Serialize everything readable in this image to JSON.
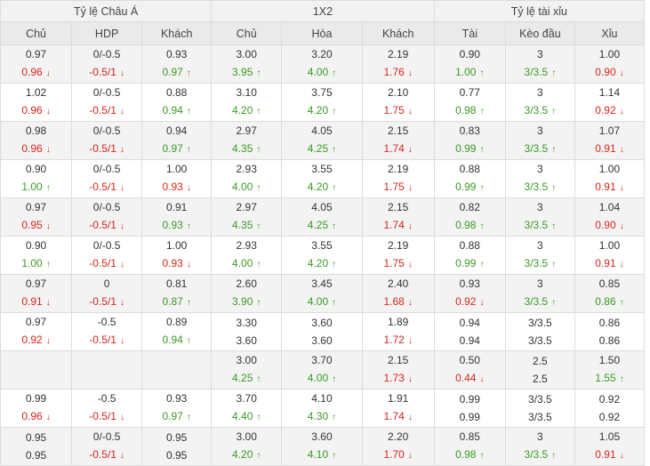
{
  "headers": {
    "groups": [
      "Tỷ lệ Châu Á",
      "1X2",
      "Tỷ lệ tài xỉu"
    ],
    "columns": [
      "Chủ",
      "HDP",
      "Khách",
      "Chủ",
      "Hòa",
      "Khách",
      "Tài",
      "Kèo đầu",
      "Xỉu"
    ]
  },
  "arrows": {
    "up": "↑",
    "down": "↓"
  },
  "colors": {
    "up": "#3a9a23",
    "down": "#d9251c",
    "text": "#333333"
  },
  "rows": [
    [
      [
        [
          "0.97",
          ""
        ],
        [
          "0.96",
          "down"
        ]
      ],
      [
        [
          "0/-0.5",
          ""
        ],
        [
          "-0.5/1",
          "down"
        ]
      ],
      [
        [
          "0.93",
          ""
        ],
        [
          "0.97",
          "up"
        ]
      ],
      [
        [
          "3.00",
          ""
        ],
        [
          "3.95",
          "up"
        ]
      ],
      [
        [
          "3.20",
          ""
        ],
        [
          "4.00",
          "up"
        ]
      ],
      [
        [
          "2.19",
          ""
        ],
        [
          "1.76",
          "down"
        ]
      ],
      [
        [
          "0.90",
          ""
        ],
        [
          "1.00",
          "up"
        ]
      ],
      [
        [
          "3",
          ""
        ],
        [
          "3/3.5",
          "up"
        ]
      ],
      [
        [
          "1.00",
          ""
        ],
        [
          "0.90",
          "down"
        ]
      ]
    ],
    [
      [
        [
          "1.02",
          ""
        ],
        [
          "0.96",
          "down"
        ]
      ],
      [
        [
          "0/-0.5",
          ""
        ],
        [
          "-0.5/1",
          "down"
        ]
      ],
      [
        [
          "0.88",
          ""
        ],
        [
          "0.94",
          "up"
        ]
      ],
      [
        [
          "3.10",
          ""
        ],
        [
          "4.20",
          "up"
        ]
      ],
      [
        [
          "3.75",
          ""
        ],
        [
          "4.20",
          "up"
        ]
      ],
      [
        [
          "2.10",
          ""
        ],
        [
          "1.75",
          "down"
        ]
      ],
      [
        [
          "0.77",
          ""
        ],
        [
          "0.98",
          "up"
        ]
      ],
      [
        [
          "3",
          ""
        ],
        [
          "3/3.5",
          "up"
        ]
      ],
      [
        [
          "1.14",
          ""
        ],
        [
          "0.92",
          "down"
        ]
      ]
    ],
    [
      [
        [
          "0.98",
          ""
        ],
        [
          "0.96",
          "down"
        ]
      ],
      [
        [
          "0/-0.5",
          ""
        ],
        [
          "-0.5/1",
          "down"
        ]
      ],
      [
        [
          "0.94",
          ""
        ],
        [
          "0.97",
          "up"
        ]
      ],
      [
        [
          "2.97",
          ""
        ],
        [
          "4.35",
          "up"
        ]
      ],
      [
        [
          "4.05",
          ""
        ],
        [
          "4.25",
          "up"
        ]
      ],
      [
        [
          "2.15",
          ""
        ],
        [
          "1.74",
          "down"
        ]
      ],
      [
        [
          "0.83",
          ""
        ],
        [
          "0.99",
          "up"
        ]
      ],
      [
        [
          "3",
          ""
        ],
        [
          "3/3.5",
          "up"
        ]
      ],
      [
        [
          "1.07",
          ""
        ],
        [
          "0.91",
          "down"
        ]
      ]
    ],
    [
      [
        [
          "0.90",
          ""
        ],
        [
          "1.00",
          "up"
        ]
      ],
      [
        [
          "0/-0.5",
          ""
        ],
        [
          "-0.5/1",
          "down"
        ]
      ],
      [
        [
          "1.00",
          ""
        ],
        [
          "0.93",
          "down"
        ]
      ],
      [
        [
          "2.93",
          ""
        ],
        [
          "4.00",
          "up"
        ]
      ],
      [
        [
          "3.55",
          ""
        ],
        [
          "4.20",
          "up"
        ]
      ],
      [
        [
          "2.19",
          ""
        ],
        [
          "1.75",
          "down"
        ]
      ],
      [
        [
          "0.88",
          ""
        ],
        [
          "0.99",
          "up"
        ]
      ],
      [
        [
          "3",
          ""
        ],
        [
          "3/3.5",
          "up"
        ]
      ],
      [
        [
          "1.00",
          ""
        ],
        [
          "0.91",
          "down"
        ]
      ]
    ],
    [
      [
        [
          "0.97",
          ""
        ],
        [
          "0.95",
          "down"
        ]
      ],
      [
        [
          "0/-0.5",
          ""
        ],
        [
          "-0.5/1",
          "down"
        ]
      ],
      [
        [
          "0.91",
          ""
        ],
        [
          "0.93",
          "up"
        ]
      ],
      [
        [
          "2.97",
          ""
        ],
        [
          "4.35",
          "up"
        ]
      ],
      [
        [
          "4.05",
          ""
        ],
        [
          "4.25",
          "up"
        ]
      ],
      [
        [
          "2.15",
          ""
        ],
        [
          "1.74",
          "down"
        ]
      ],
      [
        [
          "0.82",
          ""
        ],
        [
          "0.98",
          "up"
        ]
      ],
      [
        [
          "3",
          ""
        ],
        [
          "3/3.5",
          "up"
        ]
      ],
      [
        [
          "1.04",
          ""
        ],
        [
          "0.90",
          "down"
        ]
      ]
    ],
    [
      [
        [
          "0.90",
          ""
        ],
        [
          "1.00",
          "up"
        ]
      ],
      [
        [
          "0/-0.5",
          ""
        ],
        [
          "-0.5/1",
          "down"
        ]
      ],
      [
        [
          "1.00",
          ""
        ],
        [
          "0.93",
          "down"
        ]
      ],
      [
        [
          "2.93",
          ""
        ],
        [
          "4.00",
          "up"
        ]
      ],
      [
        [
          "3.55",
          ""
        ],
        [
          "4.20",
          "up"
        ]
      ],
      [
        [
          "2.19",
          ""
        ],
        [
          "1.75",
          "down"
        ]
      ],
      [
        [
          "0.88",
          ""
        ],
        [
          "0.99",
          "up"
        ]
      ],
      [
        [
          "3",
          ""
        ],
        [
          "3/3.5",
          "up"
        ]
      ],
      [
        [
          "1.00",
          ""
        ],
        [
          "0.91",
          "down"
        ]
      ]
    ],
    [
      [
        [
          "0.97",
          ""
        ],
        [
          "0.91",
          "down"
        ]
      ],
      [
        [
          "0",
          ""
        ],
        [
          "-0.5/1",
          "down"
        ]
      ],
      [
        [
          "0.81",
          ""
        ],
        [
          "0.87",
          "up"
        ]
      ],
      [
        [
          "2.60",
          ""
        ],
        [
          "3.90",
          "up"
        ]
      ],
      [
        [
          "3.45",
          ""
        ],
        [
          "4.00",
          "up"
        ]
      ],
      [
        [
          "2.40",
          ""
        ],
        [
          "1.68",
          "down"
        ]
      ],
      [
        [
          "0.93",
          ""
        ],
        [
          "0.92",
          "down"
        ]
      ],
      [
        [
          "3",
          ""
        ],
        [
          "3/3.5",
          "up"
        ]
      ],
      [
        [
          "0.85",
          ""
        ],
        [
          "0.86",
          "up"
        ]
      ]
    ],
    [
      [
        [
          "0.97",
          ""
        ],
        [
          "0.92",
          "down"
        ]
      ],
      [
        [
          "-0.5",
          ""
        ],
        [
          "-0.5/1",
          "down"
        ]
      ],
      [
        [
          "0.89",
          ""
        ],
        [
          "0.94",
          "up"
        ]
      ],
      [
        [
          "3.30",
          ""
        ],
        [
          "3.60",
          ""
        ]
      ],
      [
        [
          "3.60",
          ""
        ],
        [
          "3.60",
          ""
        ]
      ],
      [
        [
          "1.89",
          ""
        ],
        [
          "1.72",
          "down"
        ]
      ],
      [
        [
          "0.94",
          ""
        ],
        [
          "0.94",
          ""
        ]
      ],
      [
        [
          "3/3.5",
          ""
        ],
        [
          "3/3.5",
          ""
        ]
      ],
      [
        [
          "0.86",
          ""
        ],
        [
          "0.86",
          ""
        ]
      ]
    ],
    [
      [],
      [],
      [],
      [
        [
          "3.00",
          ""
        ],
        [
          "4.25",
          "up"
        ]
      ],
      [
        [
          "3.70",
          ""
        ],
        [
          "4.00",
          "up"
        ]
      ],
      [
        [
          "2.15",
          ""
        ],
        [
          "1.73",
          "down"
        ]
      ],
      [
        [
          "0.50",
          ""
        ],
        [
          "0.44",
          "down"
        ]
      ],
      [
        [
          "2.5",
          ""
        ],
        [
          "2.5",
          ""
        ]
      ],
      [
        [
          "1.50",
          ""
        ],
        [
          "1.55",
          "up"
        ]
      ]
    ],
    [
      [
        [
          "0.99",
          ""
        ],
        [
          "0.96",
          "down"
        ]
      ],
      [
        [
          "-0.5",
          ""
        ],
        [
          "-0.5/1",
          "down"
        ]
      ],
      [
        [
          "0.93",
          ""
        ],
        [
          "0.97",
          "up"
        ]
      ],
      [
        [
          "3.70",
          ""
        ],
        [
          "4.40",
          "up"
        ]
      ],
      [
        [
          "4.10",
          ""
        ],
        [
          "4.30",
          "up"
        ]
      ],
      [
        [
          "1.91",
          ""
        ],
        [
          "1.74",
          "down"
        ]
      ],
      [
        [
          "0.99",
          ""
        ],
        [
          "0.99",
          ""
        ]
      ],
      [
        [
          "3/3.5",
          ""
        ],
        [
          "3/3.5",
          ""
        ]
      ],
      [
        [
          "0.92",
          ""
        ],
        [
          "0.92",
          ""
        ]
      ]
    ],
    [
      [
        [
          "0.95",
          ""
        ],
        [
          "0.95",
          ""
        ]
      ],
      [
        [
          "0/-0.5",
          ""
        ],
        [
          "-0.5/1",
          "down"
        ]
      ],
      [
        [
          "0.95",
          ""
        ],
        [
          "0.95",
          ""
        ]
      ],
      [
        [
          "3.00",
          ""
        ],
        [
          "4.20",
          "up"
        ]
      ],
      [
        [
          "3.60",
          ""
        ],
        [
          "4.10",
          "up"
        ]
      ],
      [
        [
          "2.20",
          ""
        ],
        [
          "1.70",
          "down"
        ]
      ],
      [
        [
          "0.85",
          ""
        ],
        [
          "0.98",
          "up"
        ]
      ],
      [
        [
          "3",
          ""
        ],
        [
          "3/3.5",
          "up"
        ]
      ],
      [
        [
          "1.05",
          ""
        ],
        [
          "0.91",
          "down"
        ]
      ]
    ]
  ]
}
